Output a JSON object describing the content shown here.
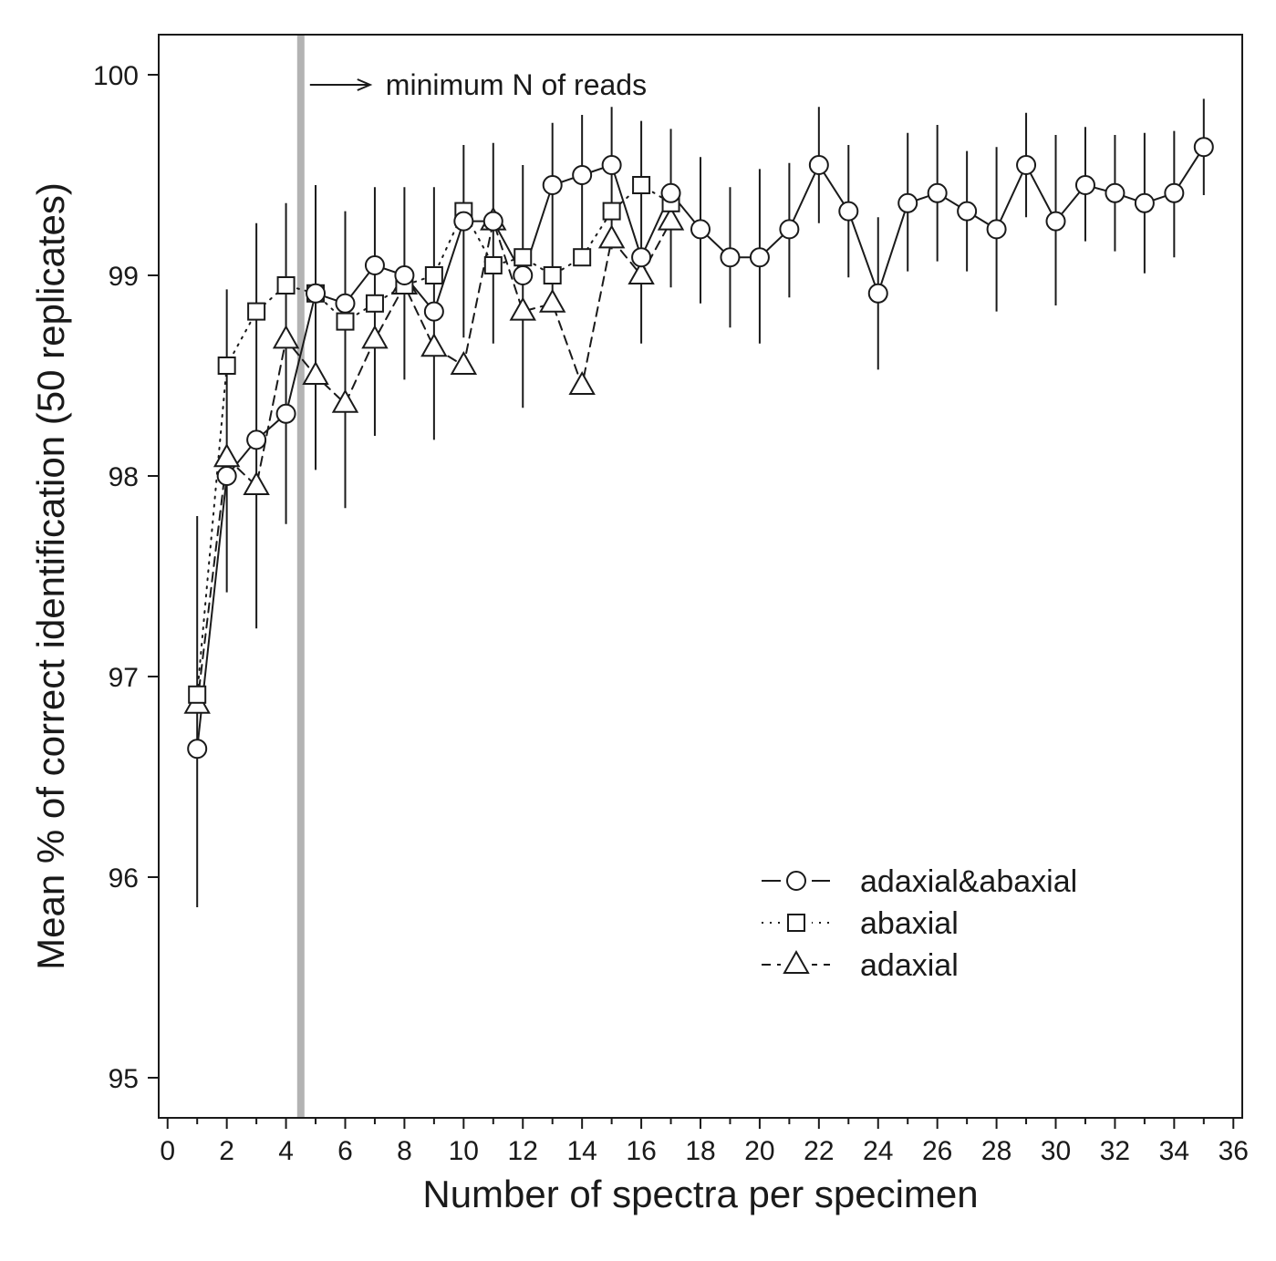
{
  "chart_data": {
    "type": "line",
    "title": "",
    "xlabel": "Number of spectra per specimen",
    "ylabel": "Mean % of correct identification (50 replicates)",
    "xlim": [
      -0.3,
      36.3
    ],
    "ylim": [
      94.8,
      100.2
    ],
    "x_ticks": [
      0,
      2,
      4,
      6,
      8,
      10,
      12,
      14,
      16,
      18,
      20,
      22,
      24,
      26,
      28,
      30,
      32,
      34,
      36
    ],
    "y_ticks": [
      95,
      96,
      97,
      98,
      99,
      100
    ],
    "grid": false,
    "legend_position": "lower-right",
    "annotation": {
      "text": "minimum N of reads",
      "x": 4.5,
      "color": "#b3b3b3"
    },
    "series": [
      {
        "name": "adaxial&abaxial",
        "marker": "circle",
        "line_style": "solid",
        "x": [
          1,
          2,
          3,
          4,
          5,
          6,
          7,
          8,
          9,
          10,
          11,
          12,
          13,
          14,
          15,
          16,
          17,
          18,
          19,
          20,
          21,
          22,
          23,
          24,
          25,
          26,
          27,
          28,
          29,
          30,
          31,
          32,
          33,
          34,
          35
        ],
        "y": [
          96.64,
          98.0,
          98.18,
          98.31,
          98.91,
          98.86,
          99.05,
          99.0,
          98.82,
          99.27,
          99.27,
          99.0,
          99.45,
          99.5,
          99.55,
          99.09,
          99.41,
          99.23,
          99.09,
          99.09,
          99.23,
          99.55,
          99.32,
          98.91,
          99.36,
          99.41,
          99.32,
          99.23,
          99.55,
          99.27,
          99.45,
          99.41,
          99.36,
          99.41,
          99.64
        ],
        "err_low": [
          95.85,
          97.42,
          97.24,
          97.76,
          98.03,
          97.84,
          98.2,
          98.48,
          98.18,
          98.69,
          98.66,
          98.34,
          98.88,
          99.11,
          99.13,
          98.66,
          98.94,
          98.86,
          98.74,
          98.66,
          98.89,
          99.26,
          98.99,
          98.53,
          99.02,
          99.07,
          99.02,
          98.82,
          99.29,
          98.85,
          99.17,
          99.12,
          99.01,
          99.09,
          99.4
        ],
        "err_high": [
          97.8,
          98.93,
          99.26,
          99.36,
          99.45,
          99.32,
          99.44,
          99.44,
          99.44,
          99.65,
          99.66,
          99.55,
          99.76,
          99.8,
          99.84,
          99.77,
          99.73,
          99.59,
          99.44,
          99.53,
          99.56,
          99.84,
          99.65,
          99.29,
          99.71,
          99.75,
          99.62,
          99.64,
          99.81,
          99.7,
          99.74,
          99.7,
          99.71,
          99.72,
          99.88
        ]
      },
      {
        "name": "abaxial",
        "marker": "square",
        "line_style": "dotted",
        "x": [
          1,
          2,
          3,
          4,
          5,
          6,
          7,
          8,
          9,
          10,
          11,
          12,
          13,
          14,
          15,
          16,
          17
        ],
        "y": [
          96.91,
          98.55,
          98.82,
          98.95,
          98.91,
          98.77,
          98.86,
          98.95,
          99.0,
          99.32,
          99.05,
          99.09,
          99.0,
          99.09,
          99.32,
          99.45,
          99.36
        ]
      },
      {
        "name": "adaxial",
        "marker": "triangle",
        "line_style": "dashed",
        "x": [
          1,
          2,
          3,
          4,
          5,
          6,
          7,
          8,
          9,
          10,
          11,
          12,
          13,
          14,
          15,
          16,
          17
        ],
        "y": [
          96.86,
          98.09,
          97.95,
          98.68,
          98.5,
          98.36,
          98.68,
          98.95,
          98.64,
          98.55,
          99.27,
          98.82,
          98.86,
          98.45,
          99.18,
          99.0,
          99.27
        ]
      }
    ]
  }
}
